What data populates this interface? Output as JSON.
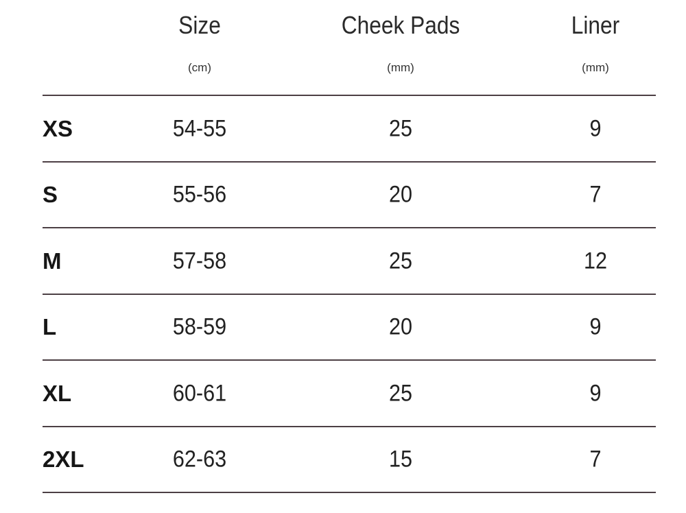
{
  "headers": [
    {
      "title": "Size",
      "unit": "(cm)"
    },
    {
      "title": "Cheek Pads",
      "unit": "(mm)"
    },
    {
      "title": "Liner",
      "unit": "(mm)"
    }
  ],
  "rows": [
    {
      "label": "XS",
      "size": "54-55",
      "cheek_pads": "25",
      "liner": "9"
    },
    {
      "label": "S",
      "size": "55-56",
      "cheek_pads": "20",
      "liner": "7"
    },
    {
      "label": "M",
      "size": "57-58",
      "cheek_pads": "25",
      "liner": "12"
    },
    {
      "label": "L",
      "size": "58-59",
      "cheek_pads": "20",
      "liner": "9"
    },
    {
      "label": "XL",
      "size": "60-61",
      "cheek_pads": "25",
      "liner": "9"
    },
    {
      "label": "2XL",
      "size": "62-63",
      "cheek_pads": "15",
      "liner": "7"
    }
  ],
  "colors": {
    "divider": "#4c3f44",
    "text": "#1e1e1e"
  }
}
